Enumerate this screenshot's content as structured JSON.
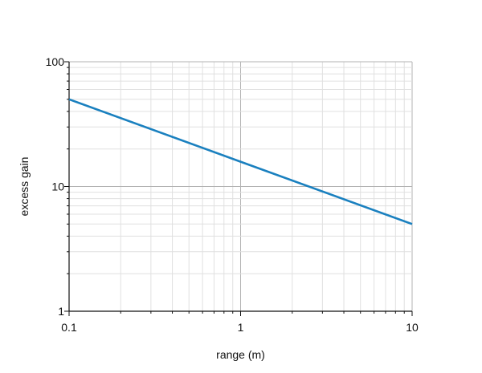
{
  "chart_data": {
    "type": "line",
    "xlabel": "range (m)",
    "ylabel": "excess gain",
    "x_scale": "log",
    "y_scale": "log",
    "xlim": [
      0.1,
      10
    ],
    "ylim": [
      1,
      100
    ],
    "x_ticks": [
      0.1,
      1,
      10
    ],
    "x_tick_labels": [
      "0.1",
      "1",
      "10"
    ],
    "y_ticks": [
      1,
      10,
      100
    ],
    "y_tick_labels": [
      "1",
      "10",
      "100"
    ],
    "grid": "on (major and minor, log)",
    "series": [
      {
        "color": "#1a80bf",
        "x": [
          0.1,
          1,
          10
        ],
        "y": [
          50,
          15.8,
          5
        ]
      }
    ]
  }
}
